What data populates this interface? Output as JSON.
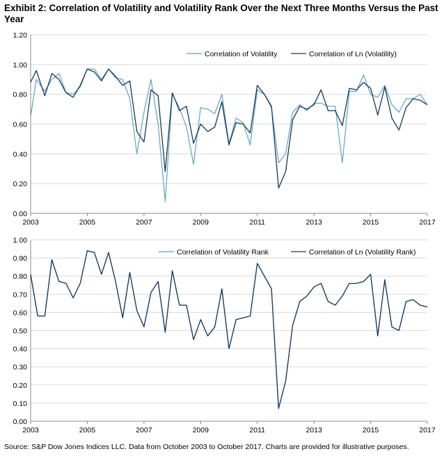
{
  "title": "Exhibit 2: Correlation of Volatility and Volatility Rank Over the Next Three Months Versus the Past Year",
  "source": "Source: S&P Dow Jones Indices LLC. Data from October 2003 to October 2017. Charts are provided for illustrative purposes.",
  "colors": {
    "light": "#5ba3c0",
    "dark": "#17375e"
  },
  "chart_data": [
    {
      "type": "line",
      "title": "",
      "xlabel": "",
      "ylabel": "",
      "xlim": [
        2003,
        2017
      ],
      "ylim": [
        0,
        1.2
      ],
      "x_ticks": [
        "2003",
        "2005",
        "2007",
        "2009",
        "2011",
        "2013",
        "2015",
        "2017"
      ],
      "y_ticks": [
        "0.00",
        "0.20",
        "0.40",
        "0.60",
        "0.80",
        "1.00",
        "1.20"
      ],
      "grid": "horizontal",
      "legend_position": "top-right",
      "x": [
        2003.0,
        2003.2,
        2003.5,
        2003.75,
        2004.0,
        2004.25,
        2004.5,
        2004.75,
        2005.0,
        2005.25,
        2005.5,
        2005.75,
        2006.0,
        2006.25,
        2006.5,
        2006.75,
        2007.0,
        2007.25,
        2007.5,
        2007.75,
        2008.0,
        2008.25,
        2008.5,
        2008.75,
        2009.0,
        2009.25,
        2009.5,
        2009.75,
        2010.0,
        2010.25,
        2010.5,
        2010.75,
        2011.0,
        2011.25,
        2011.5,
        2011.75,
        2012.0,
        2012.25,
        2012.5,
        2012.75,
        2013.0,
        2013.25,
        2013.5,
        2013.75,
        2014.0,
        2014.25,
        2014.5,
        2014.75,
        2015.0,
        2015.25,
        2015.5,
        2015.75,
        2016.0,
        2016.25,
        2016.5,
        2016.75,
        2017.0
      ],
      "series": [
        {
          "name": "Correlation of Volatility",
          "color": "light",
          "values": [
            0.65,
            0.9,
            0.82,
            0.9,
            0.94,
            0.81,
            0.8,
            0.85,
            0.97,
            0.97,
            0.9,
            0.97,
            0.91,
            0.9,
            0.77,
            0.4,
            0.68,
            0.9,
            0.6,
            0.08,
            0.8,
            0.71,
            0.58,
            0.33,
            0.71,
            0.7,
            0.67,
            0.8,
            0.47,
            0.64,
            0.61,
            0.46,
            0.83,
            0.8,
            0.71,
            0.34,
            0.4,
            0.68,
            0.73,
            0.69,
            0.74,
            0.74,
            0.72,
            0.72,
            0.34,
            0.82,
            0.82,
            0.93,
            0.8,
            0.78,
            0.86,
            0.73,
            0.68,
            0.77,
            0.77,
            0.8,
            0.73
          ]
        },
        {
          "name": "Correlation of Ln (Volatility)",
          "color": "dark",
          "values": [
            0.88,
            0.96,
            0.79,
            0.94,
            0.9,
            0.81,
            0.78,
            0.86,
            0.97,
            0.95,
            0.89,
            0.97,
            0.92,
            0.86,
            0.89,
            0.55,
            0.48,
            0.83,
            0.79,
            0.28,
            0.81,
            0.69,
            0.72,
            0.47,
            0.6,
            0.55,
            0.58,
            0.75,
            0.46,
            0.61,
            0.6,
            0.54,
            0.86,
            0.8,
            0.72,
            0.17,
            0.28,
            0.63,
            0.72,
            0.7,
            0.73,
            0.83,
            0.69,
            0.69,
            0.59,
            0.84,
            0.83,
            0.88,
            0.84,
            0.66,
            0.85,
            0.64,
            0.56,
            0.71,
            0.77,
            0.76,
            0.73
          ]
        }
      ]
    },
    {
      "type": "line",
      "title": "",
      "xlabel": "",
      "ylabel": "",
      "xlim": [
        2003,
        2017
      ],
      "ylim": [
        0,
        1.0
      ],
      "x_ticks": [
        "2003",
        "2005",
        "2007",
        "2009",
        "2011",
        "2013",
        "2015",
        "2017"
      ],
      "y_ticks": [
        "0.00",
        "0.10",
        "0.20",
        "0.30",
        "0.40",
        "0.50",
        "0.60",
        "0.70",
        "0.80",
        "0.90",
        "1.00"
      ],
      "grid": "horizontal",
      "legend_position": "top-right",
      "x": [
        2003.0,
        2003.25,
        2003.5,
        2003.75,
        2004.0,
        2004.25,
        2004.5,
        2004.75,
        2005.0,
        2005.25,
        2005.5,
        2005.75,
        2006.0,
        2006.25,
        2006.5,
        2006.75,
        2007.0,
        2007.25,
        2007.5,
        2007.75,
        2008.0,
        2008.25,
        2008.5,
        2008.75,
        2009.0,
        2009.25,
        2009.5,
        2009.75,
        2010.0,
        2010.25,
        2010.5,
        2010.75,
        2011.0,
        2011.25,
        2011.5,
        2011.75,
        2012.0,
        2012.25,
        2012.5,
        2012.75,
        2013.0,
        2013.25,
        2013.5,
        2013.75,
        2014.0,
        2014.25,
        2014.5,
        2014.75,
        2015.0,
        2015.25,
        2015.5,
        2015.75,
        2016.0,
        2016.25,
        2016.5,
        2016.75,
        2017.0
      ],
      "series": [
        {
          "name": "Correlation of Volatility Rank",
          "color": "light",
          "values": [
            0.81,
            0.58,
            0.58,
            0.89,
            0.77,
            0.76,
            0.68,
            0.76,
            0.94,
            0.93,
            0.81,
            0.93,
            0.77,
            0.57,
            0.82,
            0.61,
            0.52,
            0.71,
            0.77,
            0.49,
            0.83,
            0.64,
            0.64,
            0.45,
            0.56,
            0.47,
            0.52,
            0.73,
            0.4,
            0.56,
            0.57,
            0.58,
            0.87,
            0.8,
            0.73,
            0.07,
            0.22,
            0.53,
            0.66,
            0.69,
            0.74,
            0.76,
            0.66,
            0.64,
            0.69,
            0.76,
            0.76,
            0.77,
            0.81,
            0.47,
            0.78,
            0.52,
            0.5,
            0.66,
            0.67,
            0.64,
            0.63
          ]
        },
        {
          "name": "Correlation of Ln (Volatility Rank)",
          "color": "dark",
          "values": [
            0.81,
            0.58,
            0.58,
            0.89,
            0.77,
            0.76,
            0.68,
            0.76,
            0.94,
            0.93,
            0.81,
            0.93,
            0.77,
            0.57,
            0.82,
            0.61,
            0.52,
            0.71,
            0.77,
            0.49,
            0.83,
            0.64,
            0.64,
            0.45,
            0.56,
            0.47,
            0.52,
            0.73,
            0.4,
            0.56,
            0.57,
            0.58,
            0.87,
            0.8,
            0.73,
            0.07,
            0.22,
            0.53,
            0.66,
            0.69,
            0.74,
            0.76,
            0.66,
            0.64,
            0.69,
            0.76,
            0.76,
            0.77,
            0.81,
            0.47,
            0.78,
            0.52,
            0.5,
            0.66,
            0.67,
            0.64,
            0.63
          ]
        }
      ]
    }
  ]
}
